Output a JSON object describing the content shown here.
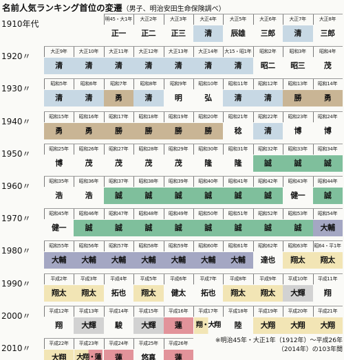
{
  "title": "名前人気ランキング首位の変遷",
  "subtitle": "（男子、明治安田生命保険調べ）",
  "note": "※明治45年・大正1年（1912年）～平成26年（2014年）の103年間",
  "colors": {
    "blue": "#c7d8e4",
    "tan": "#c9b595",
    "green": "#7fbf9c",
    "slate": "#a4a7c3",
    "yellow": "#f2e5b5",
    "gray": "#d2d2d2",
    "red": "#e2939a"
  },
  "rows": [
    {
      "decade": "1910年代",
      "start": 3,
      "cells": [
        {
          "year": "明45・大1年",
          "name": "正一",
          "color": ""
        },
        {
          "year": "大正2年",
          "name": "正二",
          "color": ""
        },
        {
          "year": "大正3年",
          "name": "正三",
          "color": ""
        },
        {
          "year": "大正4年",
          "name": "清",
          "color": "blue"
        },
        {
          "year": "大正5年",
          "name": "辰雄",
          "color": ""
        },
        {
          "year": "大正6年",
          "name": "三郎",
          "color": ""
        },
        {
          "year": "大正7年",
          "name": "清",
          "color": "blue"
        },
        {
          "year": "大正8年",
          "name": "三郎",
          "color": ""
        }
      ]
    },
    {
      "decade": "1920〃",
      "start": 1,
      "cells": [
        {
          "year": "大正9年",
          "name": "清",
          "color": "blue"
        },
        {
          "year": "大正10年",
          "name": "清",
          "color": "blue"
        },
        {
          "year": "大正11年",
          "name": "清",
          "color": "blue"
        },
        {
          "year": "大正12年",
          "name": "清",
          "color": "blue"
        },
        {
          "year": "大正13年",
          "name": "清",
          "color": "blue"
        },
        {
          "year": "大正14年",
          "name": "清",
          "color": "blue"
        },
        {
          "year": "大15・昭1年",
          "name": "清",
          "color": "blue"
        },
        {
          "year": "昭和2年",
          "name": "昭二",
          "color": ""
        },
        {
          "year": "昭和3年",
          "name": "昭三",
          "color": ""
        },
        {
          "year": "昭和4年",
          "name": "茂",
          "color": ""
        }
      ]
    },
    {
      "decade": "1930〃",
      "start": 1,
      "cells": [
        {
          "year": "昭和5年",
          "name": "清",
          "color": "blue"
        },
        {
          "year": "昭和6年",
          "name": "清",
          "color": "blue"
        },
        {
          "year": "昭和7年",
          "name": "勇",
          "color": "tan"
        },
        {
          "year": "昭和8年",
          "name": "清",
          "color": "blue"
        },
        {
          "year": "昭和9年",
          "name": "明",
          "color": ""
        },
        {
          "year": "昭和10年",
          "name": "弘",
          "color": ""
        },
        {
          "year": "昭和11年",
          "name": "清",
          "color": "blue"
        },
        {
          "year": "昭和12年",
          "name": "清",
          "color": "blue"
        },
        {
          "year": "昭和13年",
          "name": "勝",
          "color": "tan"
        },
        {
          "year": "昭和14年",
          "name": "勇",
          "color": "tan"
        }
      ]
    },
    {
      "decade": "1940〃",
      "start": 1,
      "cells": [
        {
          "year": "昭和15年",
          "name": "勇",
          "color": "tan"
        },
        {
          "year": "昭和16年",
          "name": "勇",
          "color": "tan"
        },
        {
          "year": "昭和17年",
          "name": "勝",
          "color": "tan"
        },
        {
          "year": "昭和18年",
          "name": "勝",
          "color": "tan"
        },
        {
          "year": "昭和19年",
          "name": "勝",
          "color": "tan"
        },
        {
          "year": "昭和20年",
          "name": "勝",
          "color": "tan"
        },
        {
          "year": "昭和21年",
          "name": "稔",
          "color": ""
        },
        {
          "year": "昭和22年",
          "name": "清",
          "color": "blue"
        },
        {
          "year": "昭和23年",
          "name": "博",
          "color": ""
        },
        {
          "year": "昭和24年",
          "name": "博",
          "color": ""
        }
      ]
    },
    {
      "decade": "1950〃",
      "start": 1,
      "cells": [
        {
          "year": "昭和25年",
          "name": "博",
          "color": ""
        },
        {
          "year": "昭和26年",
          "name": "茂",
          "color": ""
        },
        {
          "year": "昭和27年",
          "name": "茂",
          "color": ""
        },
        {
          "year": "昭和28年",
          "name": "茂",
          "color": ""
        },
        {
          "year": "昭和29年",
          "name": "茂",
          "color": ""
        },
        {
          "year": "昭和30年",
          "name": "隆",
          "color": ""
        },
        {
          "year": "昭和31年",
          "name": "隆",
          "color": ""
        },
        {
          "year": "昭和32年",
          "name": "誠",
          "color": "green"
        },
        {
          "year": "昭和33年",
          "name": "誠",
          "color": "green"
        },
        {
          "year": "昭和34年",
          "name": "誠",
          "color": "green"
        }
      ]
    },
    {
      "decade": "1960〃",
      "start": 1,
      "cells": [
        {
          "year": "昭和35年",
          "name": "浩",
          "color": ""
        },
        {
          "year": "昭和36年",
          "name": "浩",
          "color": ""
        },
        {
          "year": "昭和37年",
          "name": "誠",
          "color": "green"
        },
        {
          "year": "昭和38年",
          "name": "誠",
          "color": "green"
        },
        {
          "year": "昭和39年",
          "name": "誠",
          "color": "green"
        },
        {
          "year": "昭和40年",
          "name": "誠",
          "color": "green"
        },
        {
          "year": "昭和41年",
          "name": "誠",
          "color": "green"
        },
        {
          "year": "昭和42年",
          "name": "誠",
          "color": "green"
        },
        {
          "year": "昭和43年",
          "name": "健一",
          "color": ""
        },
        {
          "year": "昭和44年",
          "name": "誠",
          "color": "green"
        }
      ]
    },
    {
      "decade": "1970〃",
      "start": 1,
      "cells": [
        {
          "year": "昭和45年",
          "name": "健一",
          "color": ""
        },
        {
          "year": "昭和46年",
          "name": "誠",
          "color": "green"
        },
        {
          "year": "昭和47年",
          "name": "誠",
          "color": "green"
        },
        {
          "year": "昭和48年",
          "name": "誠",
          "color": "green"
        },
        {
          "year": "昭和49年",
          "name": "誠",
          "color": "green"
        },
        {
          "year": "昭和50年",
          "name": "誠",
          "color": "green"
        },
        {
          "year": "昭和51年",
          "name": "誠",
          "color": "green"
        },
        {
          "year": "昭和52年",
          "name": "誠",
          "color": "green"
        },
        {
          "year": "昭和53年",
          "name": "誠",
          "color": "green"
        },
        {
          "year": "昭和54年",
          "name": "大輔",
          "color": "slate"
        }
      ]
    },
    {
      "decade": "1980〃",
      "start": 1,
      "cells": [
        {
          "year": "昭和55年",
          "name": "大輔",
          "color": "slate"
        },
        {
          "year": "昭和56年",
          "name": "大輔",
          "color": "slate"
        },
        {
          "year": "昭和57年",
          "name": "大輔",
          "color": "slate"
        },
        {
          "year": "昭和58年",
          "name": "大輔",
          "color": "slate"
        },
        {
          "year": "昭和59年",
          "name": "大輔",
          "color": "slate"
        },
        {
          "year": "昭和60年",
          "name": "大輔",
          "color": "slate"
        },
        {
          "year": "昭和61年",
          "name": "大輔",
          "color": "slate"
        },
        {
          "year": "昭和62年",
          "name": "達也",
          "color": ""
        },
        {
          "year": "昭和63年",
          "name": "翔太",
          "color": "yellow"
        },
        {
          "year": "昭64・平1年",
          "name": "翔太",
          "color": "yellow"
        }
      ]
    },
    {
      "decade": "1990〃",
      "start": 1,
      "cells": [
        {
          "year": "平成2年",
          "name": "翔太",
          "color": "yellow"
        },
        {
          "year": "平成3年",
          "name": "翔太",
          "color": "yellow"
        },
        {
          "year": "平成4年",
          "name": "拓也",
          "color": ""
        },
        {
          "year": "平成5年",
          "name": "翔太",
          "color": "yellow"
        },
        {
          "year": "平成6年",
          "name": "健太",
          "color": ""
        },
        {
          "year": "平成7年",
          "name": "拓也",
          "color": ""
        },
        {
          "year": "平成8年",
          "name": "翔太",
          "color": "yellow"
        },
        {
          "year": "平成9年",
          "name": "翔太",
          "color": "yellow"
        },
        {
          "year": "平成10年",
          "name": "大輝",
          "color": "gray"
        },
        {
          "year": "平成11年",
          "name": "翔",
          "color": ""
        }
      ]
    },
    {
      "decade": "2000〃",
      "start": 1,
      "cells": [
        {
          "year": "平成12年",
          "name": "翔",
          "color": ""
        },
        {
          "year": "平成13年",
          "name": "大輝",
          "color": "gray"
        },
        {
          "year": "平成14年",
          "name": "駿",
          "color": ""
        },
        {
          "year": "平成15年",
          "name": "大輝",
          "color": "gray"
        },
        {
          "year": "平成16年",
          "name": "蓮",
          "color": "red"
        },
        {
          "year": "平成17年",
          "name": "翔・大翔",
          "color": "split-yellow"
        },
        {
          "year": "平成18年",
          "name": "陸",
          "color": ""
        },
        {
          "year": "平成19年",
          "name": "大翔",
          "color": "yellow"
        },
        {
          "year": "平成20年",
          "name": "大翔",
          "color": "yellow"
        },
        {
          "year": "平成21年",
          "name": "大翔",
          "color": "yellow"
        }
      ]
    },
    {
      "decade": "2010〃",
      "start": 1,
      "cells": [
        {
          "year": "平成22年",
          "name": "大翔",
          "color": "yellow"
        },
        {
          "year": "平成23年",
          "name": "大翔・蓮",
          "color": "split-yellow-red"
        },
        {
          "year": "平成24年",
          "name": "蓮",
          "color": "red"
        },
        {
          "year": "平成25年",
          "name": "悠真",
          "color": ""
        },
        {
          "year": "平成26年",
          "name": "蓮",
          "color": "red"
        }
      ]
    }
  ]
}
